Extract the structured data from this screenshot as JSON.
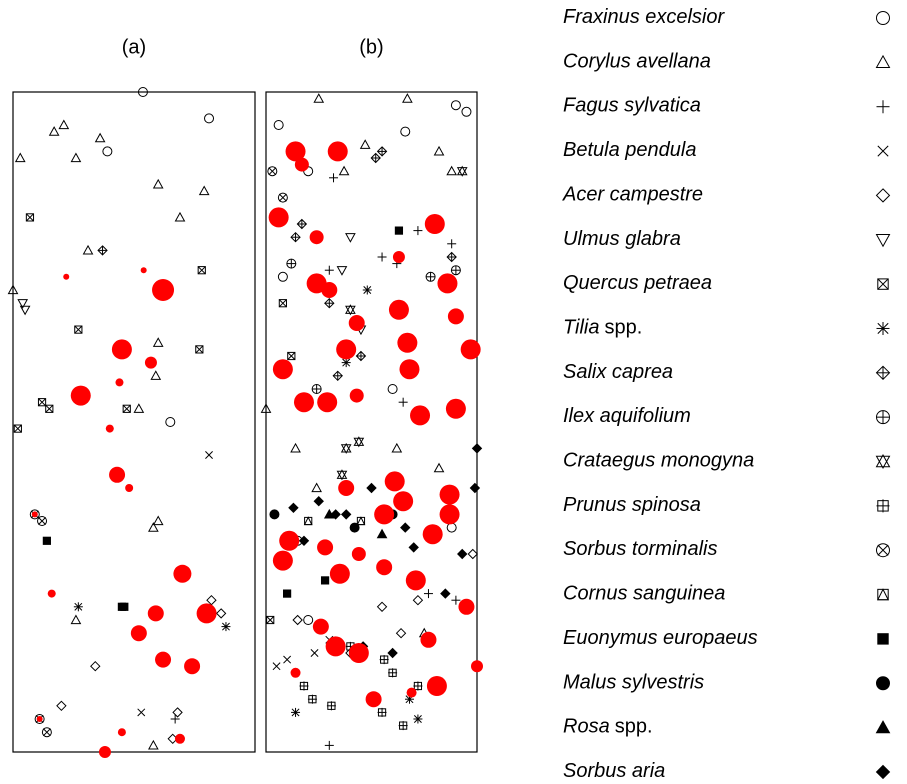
{
  "chart_data": {
    "type": "scatter",
    "xlim": [
      0,
      100
    ],
    "ylim": [
      0,
      100
    ],
    "species": [
      {
        "name": "Fraxinus excelsior",
        "symbol": "circle"
      },
      {
        "name": "Corylus avellana",
        "symbol": "triangle"
      },
      {
        "name": "Fagus sylvatica",
        "symbol": "plus"
      },
      {
        "name": "Betula pendula",
        "symbol": "cross"
      },
      {
        "name": "Acer campestre",
        "symbol": "diamond"
      },
      {
        "name": "Ulmus glabra",
        "symbol": "down-triangle"
      },
      {
        "name": "Quercus petraea",
        "symbol": "square-cross"
      },
      {
        "name": "Tilia",
        "suffix": "spp.",
        "symbol": "asterisk"
      },
      {
        "name": "Salix caprea",
        "symbol": "diamond-plus"
      },
      {
        "name": "Ilex aquifolium",
        "symbol": "circle-plus"
      },
      {
        "name": "Crataegus monogyna",
        "symbol": "star"
      },
      {
        "name": "Prunus spinosa",
        "symbol": "square-plus"
      },
      {
        "name": "Sorbus torminalis",
        "symbol": "circle-cross"
      },
      {
        "name": "Cornus sanguinea",
        "symbol": "square-triangle"
      },
      {
        "name": "Euonymus europaeus",
        "symbol": "filled-square"
      },
      {
        "name": "Malus sylvestris",
        "symbol": "filled-circle"
      },
      {
        "name": "Rosa",
        "suffix": "spp.",
        "symbol": "filled-triangle"
      },
      {
        "name": "Sorbus aria",
        "symbol": "filled-diamond"
      }
    ],
    "panels": [
      {
        "label": "(a)",
        "series": [
          {
            "species": 0,
            "x": [
              53.7,
              81,
              39,
              65
            ],
            "y": [
              100,
              96,
              91,
              50
            ]
          },
          {
            "species": 1,
            "x": [
              21,
              17,
              36,
              3,
              26,
              60,
              79,
              69,
              31,
              0,
              60,
              59,
              52,
              58,
              60,
              26,
              58
            ],
            "y": [
              95,
              94,
              93,
              90,
              90,
              86,
              85,
              81,
              76,
              70,
              62,
              57,
              52,
              34,
              35,
              20,
              1
            ]
          },
          {
            "species": 2,
            "x": [
              67
            ],
            "y": [
              5
            ]
          },
          {
            "species": 3,
            "x": [
              81,
              53
            ],
            "y": [
              45,
              6
            ]
          },
          {
            "species": 4,
            "x": [
              82,
              86,
              34,
              20,
              68,
              66
            ],
            "y": [
              23,
              21,
              13,
              7,
              6,
              2
            ]
          },
          {
            "species": 5,
            "x": [
              4,
              5
            ],
            "y": [
              68,
              67
            ]
          },
          {
            "species": 6,
            "x": [
              7,
              78,
              27,
              77,
              2,
              12,
              15,
              47
            ],
            "y": [
              81,
              73,
              64,
              61,
              49,
              53,
              52,
              52
            ]
          },
          {
            "species": 7,
            "x": [
              27,
              88
            ],
            "y": [
              22,
              19
            ]
          },
          {
            "species": 8,
            "x": [
              37
            ],
            "y": [
              76
            ]
          },
          {
            "species": 12,
            "x": [
              9,
              12,
              11,
              14
            ],
            "y": [
              36,
              35,
              5,
              3
            ]
          },
          {
            "species": 14,
            "x": [
              14,
              45,
              46
            ],
            "y": [
              32,
              22,
              22
            ]
          }
        ],
        "red": {
          "color": "#ff0000",
          "x": [
            62,
            45,
            57,
            28,
            44,
            40,
            43,
            48,
            70,
            80,
            59,
            52,
            62,
            74,
            16,
            22,
            54,
            45,
            38,
            69,
            11,
            9
          ],
          "y": [
            70,
            61,
            59,
            54,
            56,
            49,
            42,
            40,
            27,
            21,
            21,
            18,
            14,
            13,
            24,
            72,
            73,
            3,
            0,
            2,
            5,
            36
          ],
          "size": [
            11,
            10,
            6,
            10,
            4,
            4,
            8,
            4,
            9,
            10,
            8,
            8,
            8,
            8,
            4,
            3,
            3,
            4,
            6,
            5,
            3,
            3
          ]
        }
      },
      {
        "label": "(b)",
        "series": [
          {
            "species": 0,
            "x": [
              6,
              20,
              66,
              90,
              95,
              8,
              60,
              15,
              88,
              20
            ],
            "y": [
              95,
              88,
              94,
              98,
              97,
              72,
              55,
              32,
              34,
              20
            ]
          },
          {
            "species": 1,
            "x": [
              25,
              67,
              37,
              47,
              88,
              82,
              24,
              14,
              62,
              82,
              0,
              75
            ],
            "y": [
              99,
              99,
              88,
              92,
              88,
              91,
              40,
              46,
              46,
              43,
              52,
              18
            ]
          },
          {
            "species": 2,
            "x": [
              32,
              72,
              88,
              55,
              62,
              30,
              65,
              90,
              30,
              77
            ],
            "y": [
              87,
              79,
              77,
              75,
              74,
              73,
              53,
              23,
              1,
              24
            ]
          },
          {
            "species": 3,
            "x": [
              5,
              23,
              10,
              30
            ],
            "y": [
              13,
              15,
              14,
              17
            ]
          },
          {
            "species": 4,
            "x": [
              15,
              40,
              72,
              64,
              98,
              55
            ],
            "y": [
              20,
              15,
              23,
              18,
              30,
              22
            ]
          },
          {
            "species": 5,
            "x": [
              40,
              36,
              45
            ],
            "y": [
              78,
              73,
              64
            ]
          },
          {
            "species": 6,
            "x": [
              8,
              2,
              12
            ],
            "y": [
              68,
              20,
              60
            ]
          },
          {
            "species": 7,
            "x": [
              38,
              48,
              14,
              72,
              68
            ],
            "y": [
              59,
              70,
              6,
              5,
              8
            ]
          },
          {
            "species": 8,
            "x": [
              52,
              55,
              14,
              17,
              45,
              34,
              88,
              30
            ],
            "y": [
              90,
              91,
              78,
              80,
              60,
              57,
              75,
              68
            ]
          },
          {
            "species": 9,
            "x": [
              12,
              24,
              78,
              90
            ],
            "y": [
              74,
              55,
              72,
              73
            ]
          },
          {
            "species": 10,
            "x": [
              40,
              38,
              36,
              44,
              93
            ],
            "y": [
              67,
              46,
              42,
              47,
              88
            ]
          },
          {
            "species": 11,
            "x": [
              18,
              22,
              31,
              55,
              65,
              72,
              56,
              40,
              60
            ],
            "y": [
              10,
              8,
              7,
              6,
              4,
              10,
              14,
              16,
              12
            ]
          },
          {
            "species": 12,
            "x": [
              3,
              8
            ],
            "y": [
              88,
              84
            ]
          },
          {
            "species": 13,
            "x": [
              20,
              45
            ],
            "y": [
              35,
              35
            ]
          },
          {
            "species": 14,
            "x": [
              63,
              10,
              28
            ],
            "y": [
              79,
              24,
              26
            ]
          },
          {
            "species": 15,
            "x": [
              4,
              42,
              60
            ],
            "y": [
              36,
              34,
              36
            ]
          },
          {
            "species": 16,
            "x": [
              30,
              55
            ],
            "y": [
              36,
              33
            ]
          },
          {
            "species": 17,
            "x": [
              13,
              25,
              38,
              50,
              66,
              70,
              85,
              93,
              60,
              46,
              33,
              18,
              100,
              99
            ],
            "y": [
              37,
              38,
              36,
              40,
              34,
              31,
              24,
              30,
              15,
              16,
              36,
              32,
              46,
              40
            ]
          }
        ],
        "red": {
          "color": "#ff0000",
          "x": [
            14,
            34,
            17,
            6,
            80,
            24,
            63,
            24,
            86,
            30,
            63,
            90,
            43,
            67,
            38,
            97,
            8,
            68,
            18,
            29,
            43,
            73,
            90,
            38,
            61,
            87,
            56,
            65,
            87,
            79,
            11,
            28,
            8,
            44,
            35,
            56,
            71,
            95,
            26,
            77,
            33,
            44,
            81,
            51,
            100,
            14,
            69
          ],
          "y": [
            91,
            91,
            89,
            81,
            80,
            78,
            75,
            71,
            71,
            70,
            67,
            66,
            65,
            62,
            61,
            61,
            58,
            58,
            53,
            53,
            54,
            51,
            52,
            40,
            41,
            39,
            36,
            38,
            36,
            33,
            32,
            31,
            29,
            30,
            27,
            28,
            26,
            22,
            19,
            17,
            16,
            15,
            10,
            8,
            13,
            12,
            9
          ],
          "size": [
            10,
            10,
            7,
            10,
            10,
            7,
            6,
            10,
            10,
            8,
            10,
            8,
            8,
            10,
            10,
            10,
            10,
            10,
            10,
            10,
            7,
            10,
            10,
            8,
            10,
            10,
            10,
            10,
            10,
            10,
            10,
            8,
            10,
            7,
            10,
            8,
            10,
            8,
            8,
            8,
            10,
            10,
            10,
            8,
            6,
            5,
            5
          ]
        }
      }
    ]
  }
}
